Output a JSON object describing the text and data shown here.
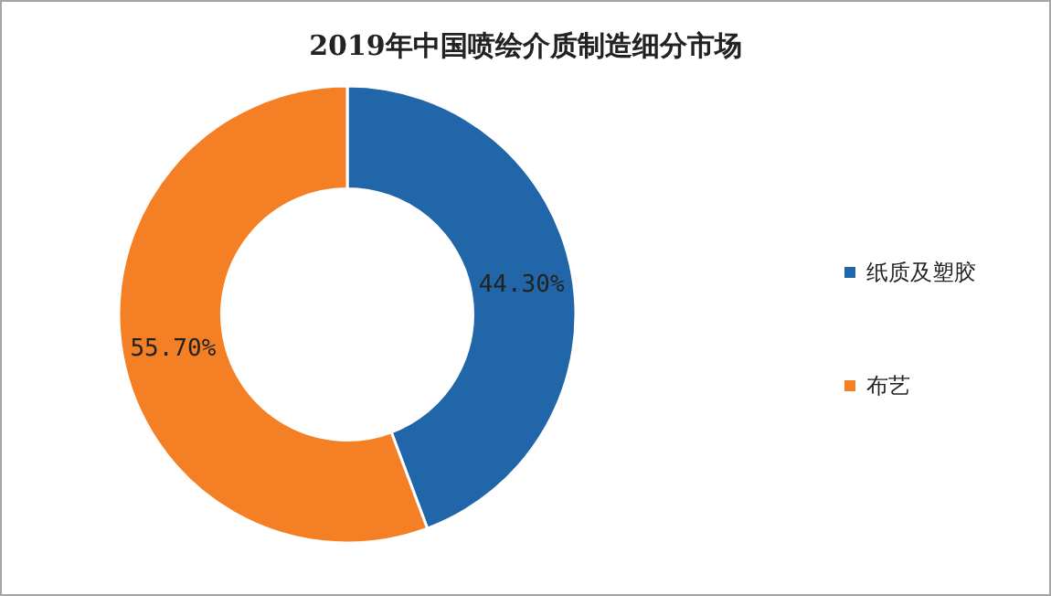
{
  "chart_data": {
    "type": "donut",
    "title": "2019年中国喷绘介质制造细分市场",
    "categories": [
      "纸质及塑胶",
      "布艺"
    ],
    "values": [
      44.3,
      55.7
    ],
    "colors": [
      "#2066a8",
      "#f47f24"
    ],
    "value_labels": [
      "44.30%",
      "55.70%"
    ],
    "legend": "right"
  }
}
